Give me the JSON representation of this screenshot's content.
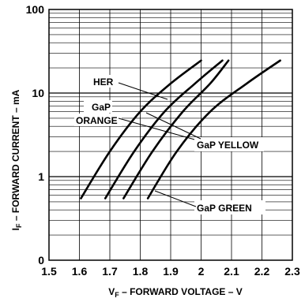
{
  "chart_data": {
    "type": "line",
    "x_scale": "linear",
    "y_scale": "log",
    "xlim": [
      1.5,
      2.3
    ],
    "ylim": [
      0.1,
      100
    ],
    "x_ticks": [
      "1.5",
      "1.6",
      "1.7",
      "1.8",
      "1.9",
      "2",
      "2.1",
      "2.2",
      "2.3"
    ],
    "y_ticks": [
      {
        "value": 0.1,
        "label": "0"
      },
      {
        "value": 1,
        "label": "1"
      },
      {
        "value": 10,
        "label": "10"
      },
      {
        "value": 100,
        "label": "100"
      }
    ],
    "grid": true,
    "xlabel": {
      "main": "V",
      "sub": "F",
      "rest": " – FORWARD VOLTAGE – V"
    },
    "ylabel": {
      "main": "I",
      "sub": "F",
      "rest": " – FORWARD CURRENT – mA"
    },
    "series": [
      {
        "name": "HER",
        "color": "#000000",
        "points": [
          [
            1.605,
            0.55
          ],
          [
            1.7,
            2.0
          ],
          [
            1.8,
            6.0
          ],
          [
            1.9,
            13.0
          ],
          [
            2.0,
            24.5
          ]
        ]
      },
      {
        "name": "GaP ORANGE",
        "color": "#000000",
        "points": [
          [
            1.685,
            0.55
          ],
          [
            1.78,
            2.0
          ],
          [
            1.88,
            6.0
          ],
          [
            1.98,
            13.0
          ],
          [
            2.07,
            24.5
          ]
        ]
      },
      {
        "name": "GaP YELLOW",
        "color": "#000000",
        "points": [
          [
            1.745,
            0.55
          ],
          [
            1.84,
            2.0
          ],
          [
            1.94,
            6.0
          ],
          [
            2.03,
            13.0
          ],
          [
            2.09,
            24.5
          ]
        ]
      },
      {
        "name": "GaP GREEN",
        "color": "#000000",
        "points": [
          [
            1.825,
            0.55
          ],
          [
            1.92,
            2.0
          ],
          [
            2.03,
            6.0
          ],
          [
            2.15,
            13.0
          ],
          [
            2.26,
            24.5
          ]
        ]
      }
    ],
    "labels": {
      "her": "HER",
      "gap_orange_1": "GaP",
      "gap_orange_2": "ORANGE",
      "gap_yellow": "GaP YELLOW",
      "gap_green": "GaP GREEN"
    }
  }
}
